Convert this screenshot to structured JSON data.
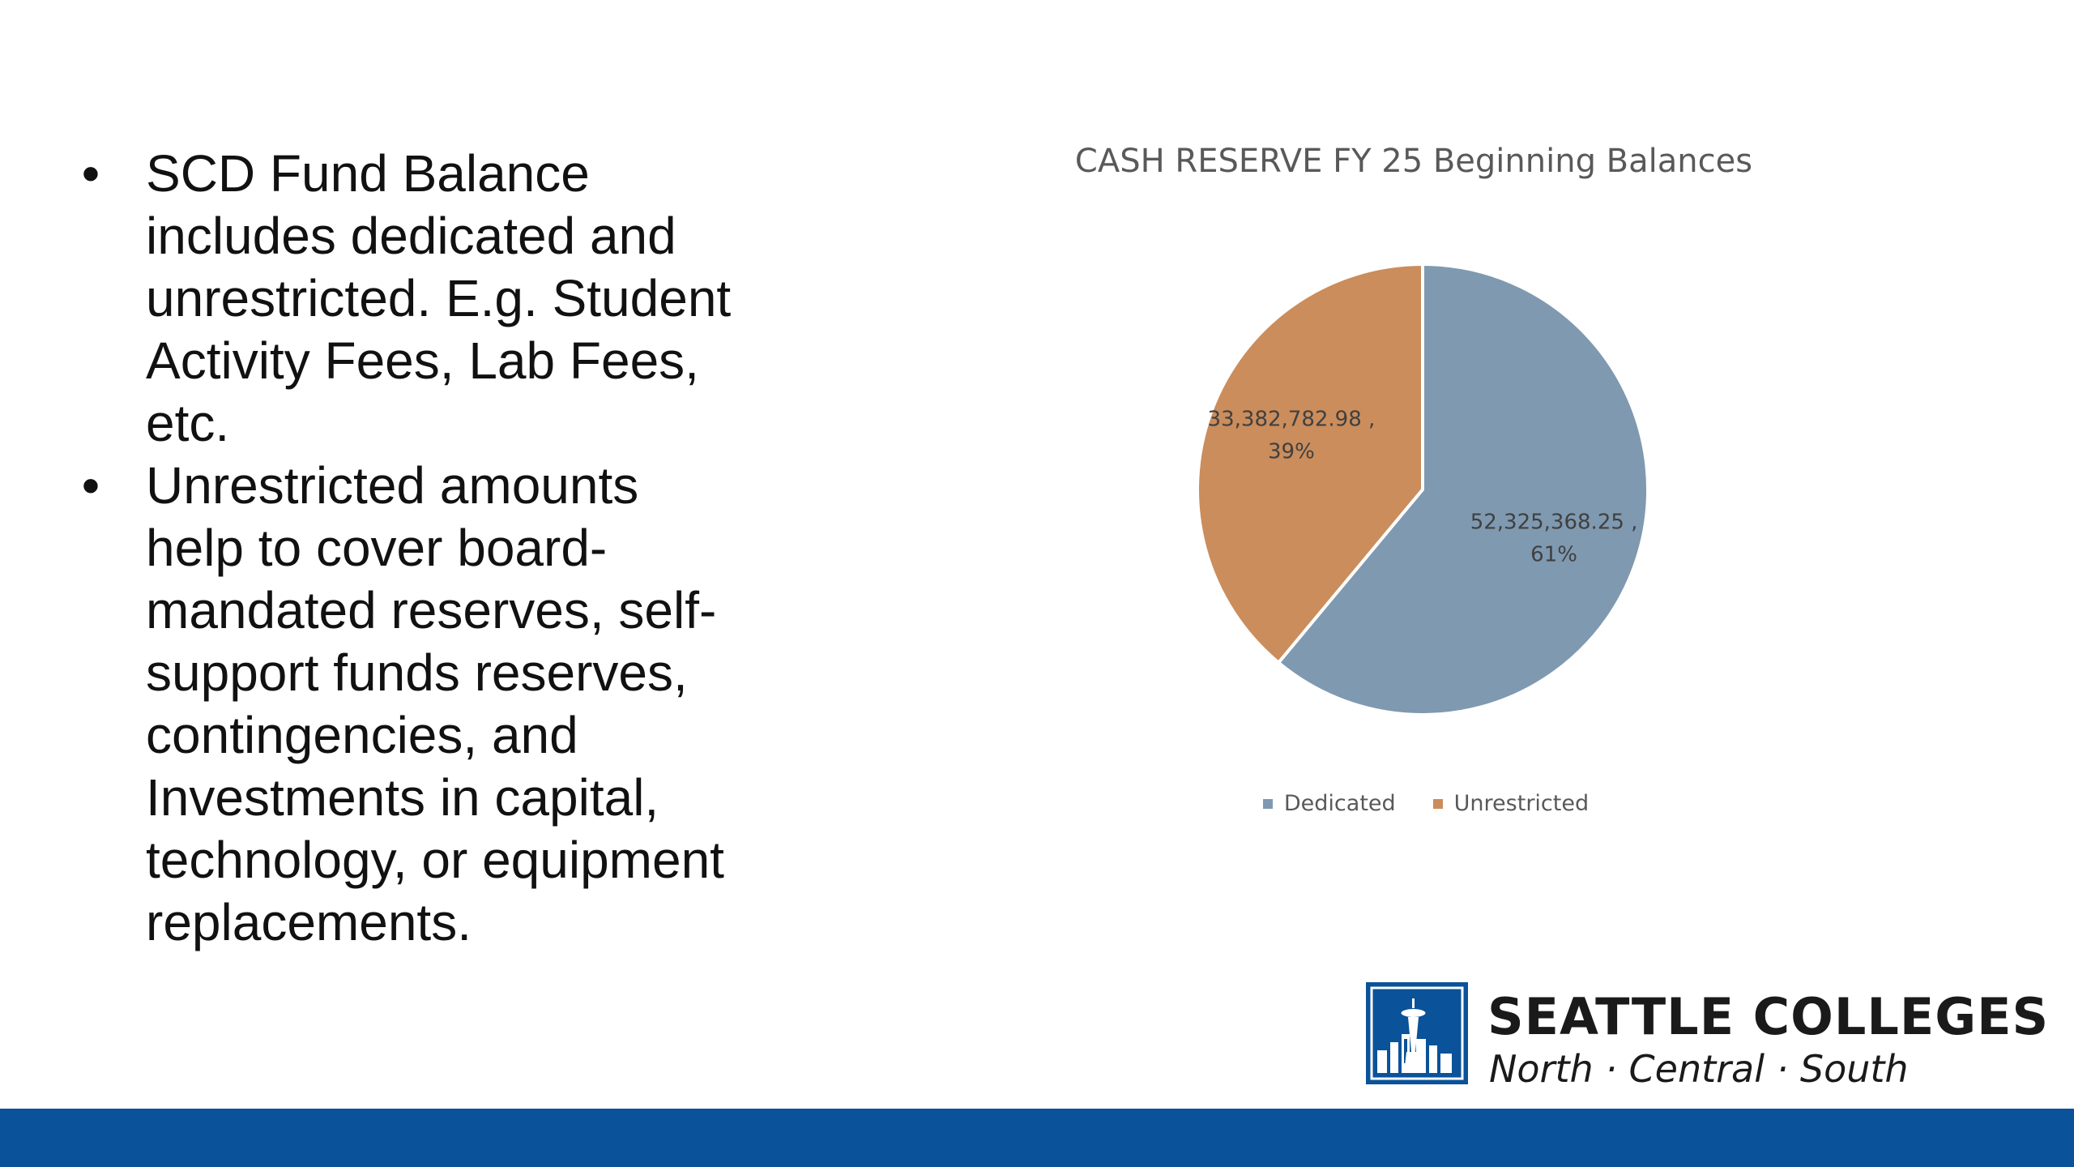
{
  "bullets": [
    "SCD Fund Balance includes dedicated and unrestricted. E.g. Student Activity Fees, Lab Fees, etc.",
    "Unrestricted amounts help to cover board-mandated reserves, self-support funds reserves, contingencies, and Investments in capital, technology, or equipment replacements."
  ],
  "bullet_symbol": "•",
  "chart_data": {
    "type": "pie",
    "title": "CASH RESERVE FY 25 Beginning Balances",
    "categories": [
      "Dedicated",
      "Unrestricted"
    ],
    "values": [
      52325368.25,
      33382782.98
    ],
    "data_labels": [
      {
        "value": "52,325,368.25 ,",
        "percent": "61%"
      },
      {
        "value": "33,382,782.98 ,",
        "percent": "39%"
      }
    ],
    "colors": [
      "#7f99b0",
      "#cb8d5c"
    ],
    "start_angle": "12 o'clock",
    "direction": "clockwise",
    "legend_position": "bottom"
  },
  "logo": {
    "line1": "SEATTLE COLLEGES",
    "line2": "North · Central · South",
    "color": "#0a5299"
  },
  "footer": {
    "color": "#0a5299"
  }
}
